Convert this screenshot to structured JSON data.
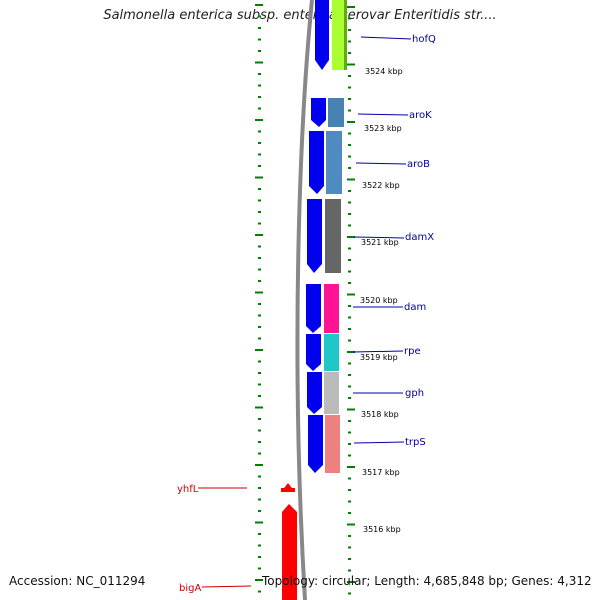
{
  "header": {
    "title": "Salmonella enterica subsp. enterica serovar Enteritidis str...."
  },
  "footer": {
    "accession": "Accession: NC_011294",
    "summary": "Topology: circular; Length: 4,685,848 bp; Genes: 4,312"
  },
  "colors": {
    "forward_strand": "#ff0000",
    "reverse_strand": "#0000ff",
    "backbone": "#888888",
    "ruler_ticks": "#008000",
    "label_forward": "#cc0000",
    "label_reverse": "#000099"
  },
  "ruler": {
    "unit": "kbp",
    "ticks": [
      {
        "value": 3524,
        "label": "3524 kbp"
      },
      {
        "value": 3523,
        "label": "3523 kbp"
      },
      {
        "value": 3522,
        "label": "3522 kbp"
      },
      {
        "value": 3521,
        "label": "3521 kbp"
      },
      {
        "value": 3520,
        "label": "3520 kbp"
      },
      {
        "value": 3519,
        "label": "3519 kbp"
      },
      {
        "value": 3518,
        "label": "3518 kbp"
      },
      {
        "value": 3517,
        "label": "3517 kbp"
      },
      {
        "value": 3516,
        "label": "3516 kbp"
      }
    ]
  },
  "genes": [
    {
      "name": "hofQ",
      "strand": "reverse",
      "cog_color": "#aaff33"
    },
    {
      "name": "aroK",
      "strand": "reverse",
      "cog_color": "#4682b4"
    },
    {
      "name": "aroB",
      "strand": "reverse",
      "cog_color": "#4f8ac0"
    },
    {
      "name": "damX",
      "strand": "reverse",
      "cog_color": "#666666"
    },
    {
      "name": "dam",
      "strand": "reverse",
      "cog_color": "#ff1493"
    },
    {
      "name": "rpe",
      "strand": "reverse",
      "cog_color": "#1ec8c8"
    },
    {
      "name": "gph",
      "strand": "reverse",
      "cog_color": "#bbbbbb"
    },
    {
      "name": "trpS",
      "strand": "reverse",
      "cog_color": "#ee8080"
    },
    {
      "name": "yhfL",
      "strand": "forward",
      "cog_color": "#ff0000"
    },
    {
      "name": "bigA",
      "strand": "forward",
      "cog_color": "#ff0000"
    }
  ]
}
